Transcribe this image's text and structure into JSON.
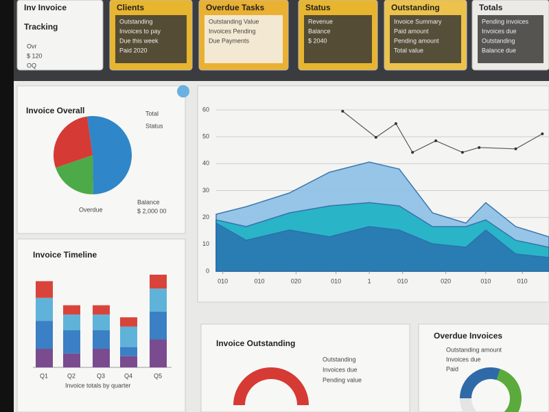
{
  "cards": [
    {
      "title": "Inv Invoice",
      "subtitle": "Tracking",
      "lines": [
        "Ovr",
        "$ 120",
        "OQ"
      ]
    },
    {
      "title": "Clients",
      "lines": [
        "Outstanding",
        "Invoices to pay",
        "Due this week",
        "Paid 2020"
      ]
    },
    {
      "title": "Overdue Tasks",
      "lines": [
        "Outstanding Value",
        "Invoices Pending",
        "Due Payments"
      ]
    },
    {
      "title": "Status",
      "lines": [
        "Revenue",
        "Balance",
        "$ 2040"
      ]
    },
    {
      "title": "Outstanding",
      "lines": [
        "Invoice Summary",
        "Paid amount",
        "Pending amount",
        "Total value"
      ]
    },
    {
      "title": "Totals",
      "lines": [
        "Pending invoices",
        "Invoices due",
        "Outstanding",
        "Balance due"
      ]
    }
  ],
  "pie_panel": {
    "title": "Invoice Overall",
    "legend": [
      "Total",
      "Status"
    ],
    "footer_left": "Overdue",
    "footer_right": [
      "Balance",
      "$ 2,000 00"
    ],
    "values": [
      28,
      52,
      20
    ],
    "colors": [
      "#d63a34",
      "#2f86c8",
      "#4caa48"
    ]
  },
  "bar_panel": {
    "title": "Invoice Timeline",
    "categories": [
      "Q1",
      "Q2",
      "Q3",
      "Q4",
      "Q5"
    ],
    "ylim": [
      0,
      100
    ],
    "series": [
      {
        "color": "#7a4b8f",
        "values": [
          20,
          15,
          20,
          12,
          30
        ]
      },
      {
        "color": "#3b7fc4",
        "values": [
          30,
          25,
          20,
          10,
          30
        ]
      },
      {
        "color": "#5fb3d9",
        "values": [
          25,
          17,
          17,
          22,
          25
        ]
      },
      {
        "color": "#d9443a",
        "values": [
          18,
          10,
          10,
          10,
          15
        ]
      }
    ],
    "footer": "Invoice totals by quarter"
  },
  "area_chart": {
    "xlim": [
      0,
      100
    ],
    "ylim": [
      0,
      60
    ],
    "yticks": [
      0,
      10,
      20,
      30,
      40,
      50,
      60
    ],
    "xticks": [
      {
        "value": 2,
        "label": "010"
      },
      {
        "value": 13,
        "label": "010"
      },
      {
        "value": 24,
        "label": "020"
      },
      {
        "value": 36,
        "label": "010"
      },
      {
        "value": 46,
        "label": "1"
      },
      {
        "value": 56,
        "label": "010"
      },
      {
        "value": 69,
        "label": "020"
      },
      {
        "value": 81,
        "label": "010"
      },
      {
        "value": 92,
        "label": "010"
      }
    ],
    "x": [
      0,
      9,
      22,
      34,
      46,
      55,
      65,
      75,
      81,
      90,
      100
    ],
    "series": [
      {
        "color": "#8cc0e6",
        "values": [
          21.2,
          24.0,
          29.1,
          36.8,
          40.6,
          38.0,
          21.7,
          17.9,
          25.5,
          16.6,
          12.8
        ]
      },
      {
        "color": "#1fb3c4",
        "values": [
          19.1,
          16.6,
          21.7,
          24.3,
          25.5,
          24.3,
          16.6,
          16.6,
          19.1,
          11.5,
          8.9
        ]
      },
      {
        "color": "#2a78b0",
        "values": [
          17.9,
          11.5,
          15.3,
          12.8,
          16.6,
          15.3,
          10.2,
          8.9,
          15.3,
          6.4,
          5.1
        ]
      }
    ],
    "line": {
      "color": "#555",
      "x": [
        38,
        48,
        54,
        59,
        66,
        74,
        79,
        90,
        98
      ],
      "values": [
        59.5,
        49.8,
        54.9,
        44.2,
        48.5,
        44.2,
        46.0,
        45.5,
        51.1
      ]
    }
  },
  "donut_left": {
    "title": "Invoice Outstanding",
    "legend": [
      "Outstanding",
      "Invoices due",
      "Pending value"
    ],
    "values": [
      100
    ],
    "colors": [
      "#d63a34"
    ]
  },
  "donut_right": {
    "title": "Overdue Invoices",
    "lines": [
      "Outstanding amount",
      "Invoices due",
      "Paid"
    ],
    "values": [
      30,
      45,
      25
    ],
    "colors": [
      "#2f6aa8",
      "#5aab3c",
      "#e4e4e4"
    ]
  }
}
